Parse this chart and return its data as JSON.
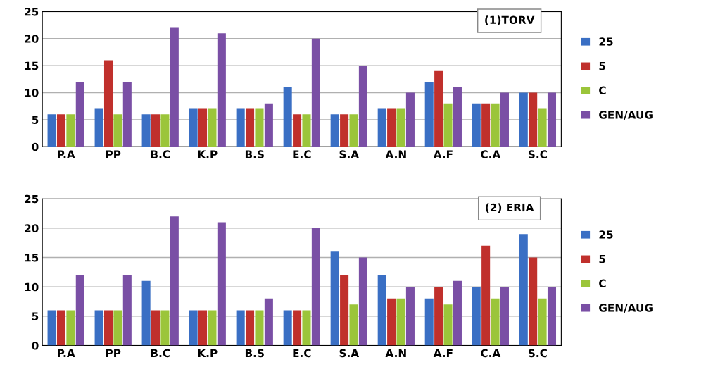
{
  "chart_data": [
    {
      "type": "bar",
      "title": "(1)TORV",
      "categories": [
        "P.A",
        "PP",
        "B.C",
        "K.P",
        "B.S",
        "E.C",
        "S.A",
        "A.N",
        "A.F",
        "C.A",
        "S.C"
      ],
      "series": [
        {
          "name": "25",
          "color": "#3a6fc4",
          "values": [
            6,
            7,
            6,
            7,
            7,
            11,
            6,
            7,
            12,
            8,
            10
          ]
        },
        {
          "name": "5",
          "color": "#c0302c",
          "values": [
            6,
            16,
            6,
            7,
            7,
            6,
            6,
            7,
            14,
            8,
            10
          ]
        },
        {
          "name": "C",
          "color": "#9bc53a",
          "values": [
            6,
            6,
            6,
            7,
            7,
            6,
            6,
            7,
            8,
            8,
            7
          ]
        },
        {
          "name": "GEN/AUG",
          "color": "#7a4fa5",
          "values": [
            12,
            12,
            22,
            21,
            8,
            20,
            15,
            10,
            11,
            10,
            10
          ]
        }
      ],
      "ylim": [
        0,
        25
      ],
      "yticks": [
        0,
        5,
        10,
        15,
        20,
        25
      ],
      "grid": "y",
      "legend": "right"
    },
    {
      "type": "bar",
      "title": "(2) ERIA",
      "categories": [
        "P.A",
        "PP",
        "B.C",
        "K.P",
        "B.S",
        "E.C",
        "S.A",
        "A.N",
        "A.F",
        "C.A",
        "S.C"
      ],
      "series": [
        {
          "name": "25",
          "color": "#3a6fc4",
          "values": [
            6,
            6,
            11,
            6,
            6,
            6,
            16,
            12,
            8,
            10,
            19
          ]
        },
        {
          "name": "5",
          "color": "#c0302c",
          "values": [
            6,
            6,
            6,
            6,
            6,
            6,
            12,
            8,
            10,
            17,
            15
          ]
        },
        {
          "name": "C",
          "color": "#9bc53a",
          "values": [
            6,
            6,
            6,
            6,
            6,
            6,
            7,
            8,
            7,
            8,
            8
          ]
        },
        {
          "name": "GEN/AUG",
          "color": "#7a4fa5",
          "values": [
            12,
            12,
            22,
            21,
            8,
            20,
            15,
            10,
            11,
            10,
            10
          ]
        }
      ],
      "ylim": [
        0,
        25
      ],
      "yticks": [
        0,
        5,
        10,
        15,
        20,
        25
      ],
      "grid": "y",
      "legend": "right"
    }
  ]
}
